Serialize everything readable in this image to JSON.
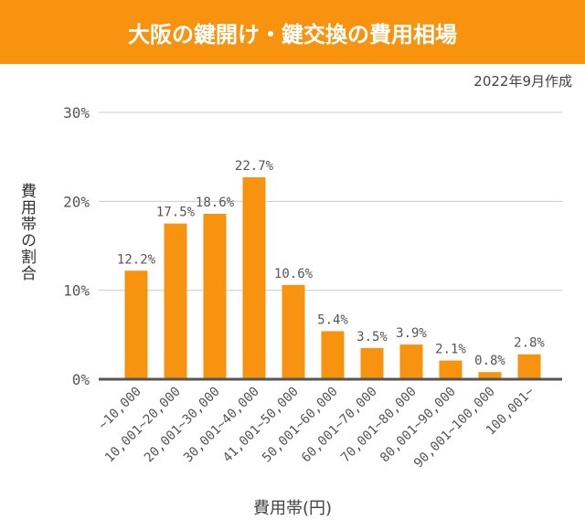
{
  "chart_data": {
    "type": "bar",
    "title": "大阪の鍵開け・鍵交換の費用相場",
    "subtitle": "2022年9月作成",
    "xlabel": "費用帯(円)",
    "ylabel": "費用帯の割合",
    "categories": [
      "~10,000",
      "10,001~20,000",
      "20,001~30,000",
      "30,001~40,000",
      "41,001~50,000",
      "50,001~60,000",
      "60,001~70,000",
      "70,001~80,000",
      "80,001~90,000",
      "90,001~100,000",
      "100,001~"
    ],
    "values": [
      12.2,
      17.5,
      18.6,
      22.7,
      10.6,
      5.4,
      3.5,
      3.9,
      2.1,
      0.8,
      2.8
    ],
    "data_labels": [
      "12.2%",
      "17.5%",
      "18.6%",
      "22.7%",
      "10.6%",
      "5.4%",
      "3.5%",
      "3.9%",
      "2.1%",
      "0.8%",
      "2.8%"
    ],
    "yticks": [
      0,
      10,
      20,
      30
    ],
    "ytick_labels": [
      "0%",
      "10%",
      "20%",
      "30%"
    ],
    "ylim": [
      0,
      30
    ],
    "grid": true,
    "bar_color": "#f7930f"
  }
}
